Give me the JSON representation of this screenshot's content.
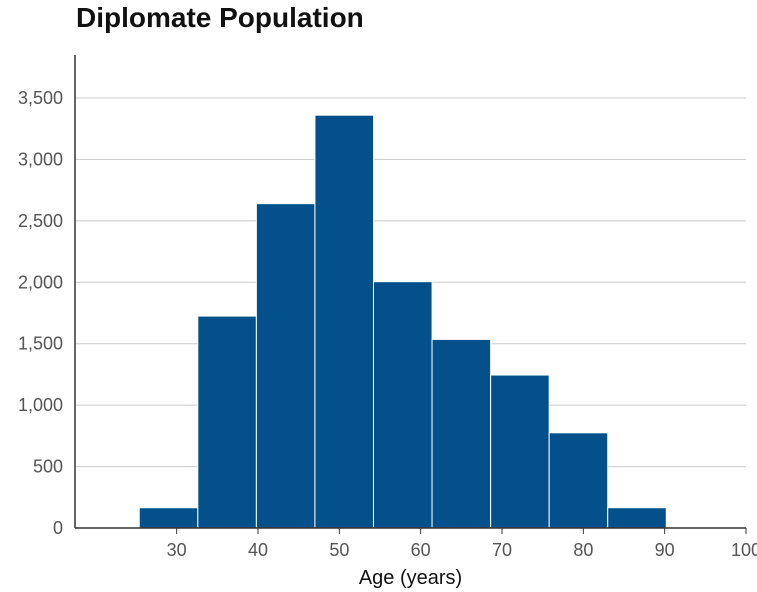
{
  "chart_data": {
    "type": "bar",
    "title": "Diplomate Population",
    "xlabel": "Age (years)",
    "ylabel": "",
    "bin_edges": [
      25.4,
      32.6,
      39.8,
      47.0,
      54.2,
      61.4,
      68.6,
      75.8,
      83.0,
      90.2
    ],
    "values": [
      165,
      1725,
      2640,
      3360,
      2005,
      1535,
      1245,
      775,
      165
    ],
    "xlim": [
      17.5,
      100
    ],
    "ylim": [
      0,
      3850
    ],
    "x_ticks": [
      30,
      40,
      50,
      60,
      70,
      80,
      90,
      100
    ],
    "x_tick_labels": [
      "30",
      "40",
      "50",
      "60",
      "70",
      "80",
      "90",
      "100"
    ],
    "y_ticks": [
      0,
      500,
      1000,
      1500,
      2000,
      2500,
      3000,
      3500
    ],
    "y_tick_labels": [
      "0",
      "500",
      "1,000",
      "1,500",
      "2,000",
      "2,500",
      "3,000",
      "3,500"
    ],
    "grid": "horizontal",
    "bar_color": "#03508a",
    "grid_color": "#cccccc",
    "axis_color": "#333333"
  }
}
